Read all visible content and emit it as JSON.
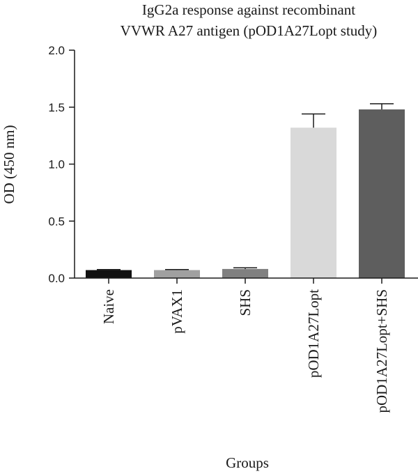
{
  "chart_data": {
    "type": "bar",
    "title_lines": [
      "IgG2a response against recombinant",
      "VVWR A27 antigen (pOD1A27Lopt study)"
    ],
    "xlabel": "Groups",
    "ylabel": "OD (450 nm)",
    "ylim": [
      0,
      2.0
    ],
    "yticks": [
      0.0,
      0.5,
      1.0,
      1.5,
      2.0
    ],
    "ytick_labels": [
      "0.0",
      "0.5",
      "1.0",
      "1.5",
      "2.0"
    ],
    "categories": [
      "Naive",
      "pVAX1",
      "SHS",
      "pOD1A27Lopt",
      "pOD1A27Lopt+SHS"
    ],
    "values": [
      0.07,
      0.07,
      0.08,
      1.32,
      1.48
    ],
    "errors": [
      0.005,
      0.005,
      0.01,
      0.12,
      0.05
    ],
    "colors": [
      "#111111",
      "#a0a0a0",
      "#808080",
      "#d9d9d9",
      "#5e5e5e"
    ],
    "grid": false,
    "legend": false
  }
}
